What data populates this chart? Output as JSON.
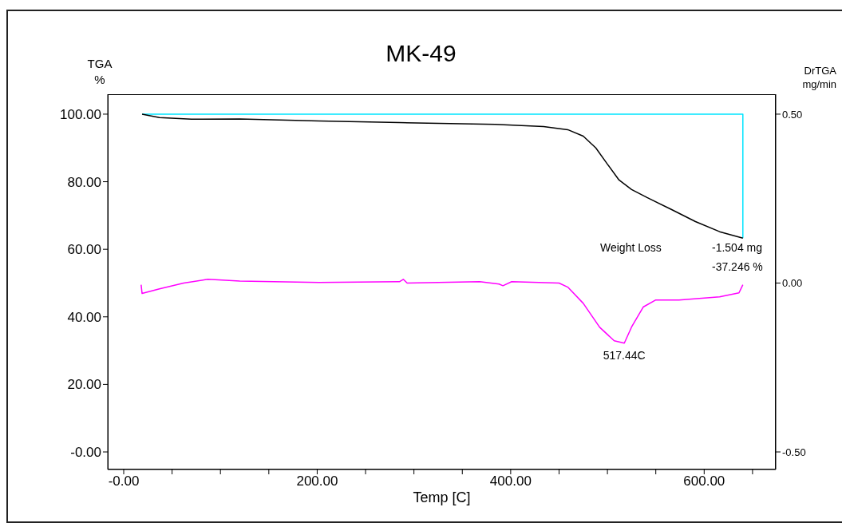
{
  "chart_data": {
    "type": "line",
    "title": "MK-49",
    "xlabel": "Temp  [C]",
    "ylabel": "TGA\n%",
    "y2label": "DrTGA\nmg/min",
    "xlim": [
      -16.5,
      674
    ],
    "xticks": [
      {
        "value": 0,
        "label": "-0.00"
      },
      {
        "value": 50,
        "label": null
      },
      {
        "value": 100,
        "label": null
      },
      {
        "value": 150,
        "label": null
      },
      {
        "value": 200,
        "label": "200.00"
      },
      {
        "value": 250,
        "label": null
      },
      {
        "value": 300,
        "label": null
      },
      {
        "value": 350,
        "label": null
      },
      {
        "value": 400,
        "label": "400.00"
      },
      {
        "value": 450,
        "label": null
      },
      {
        "value": 500,
        "label": null
      },
      {
        "value": 550,
        "label": null
      },
      {
        "value": 600,
        "label": "600.00"
      },
      {
        "value": 650,
        "label": null
      }
    ],
    "ylim": [
      -5.2,
      105.9
    ],
    "yticks": [
      {
        "value": 0,
        "label": "-0.00"
      },
      {
        "value": 20,
        "label": "20.00"
      },
      {
        "value": 40,
        "label": "40.00"
      },
      {
        "value": 60,
        "label": "60.00"
      },
      {
        "value": 80,
        "label": "80.00"
      },
      {
        "value": 100,
        "label": "100.00"
      }
    ],
    "y2lim": [
      -0.552,
      0.559
    ],
    "y2ticks": [
      {
        "value": -0.5,
        "label": "-0.50"
      },
      {
        "value": 0,
        "label": "0.00"
      },
      {
        "value": 0.5,
        "label": "0.50"
      }
    ],
    "grid": false,
    "legend": false,
    "marker": "none",
    "line_style": "solid",
    "series": [
      {
        "color": "#00e5ff",
        "x": [
          19,
          640,
          640
        ],
        "values": [
          100,
          100,
          63.3
        ]
      },
      {
        "color": "#000000",
        "x": [
          19,
          37,
          70,
          120,
          202,
          285,
          384,
          434,
          459,
          475,
          488,
          500,
          512,
          525,
          541,
          566,
          591,
          616,
          640
        ],
        "values": [
          100,
          99,
          98.5,
          98.6,
          98,
          97.5,
          97,
          96.3,
          95.4,
          93.5,
          90,
          85.2,
          80.5,
          77.7,
          75.3,
          71.8,
          68.2,
          65.2,
          63.3
        ]
      },
      {
        "color": "#ff00ff",
        "axis": "y2",
        "x": [
          18,
          19,
          37,
          62,
          87,
          120,
          202,
          285,
          289,
          293,
          368,
          388,
          392,
          401,
          450,
          459,
          475,
          492,
          507,
          517.44,
          525,
          537,
          550,
          574,
          616,
          636,
          640
        ],
        "values": [
          -0.005,
          -0.031,
          -0.017,
          0,
          0.011,
          0.006,
          0.002,
          0.004,
          0.011,
          0,
          0.004,
          -0.003,
          -0.008,
          0.004,
          0,
          -0.012,
          -0.06,
          -0.131,
          -0.171,
          -0.178,
          -0.13,
          -0.071,
          -0.05,
          -0.05,
          -0.041,
          -0.029,
          -0.005
        ]
      }
    ],
    "annotations": [
      "Weight Loss",
      "-1.504 mg",
      "-37.246 %",
      {
        "text": "517.44C",
        "x": 517.44,
        "y": 32.2
      }
    ]
  }
}
